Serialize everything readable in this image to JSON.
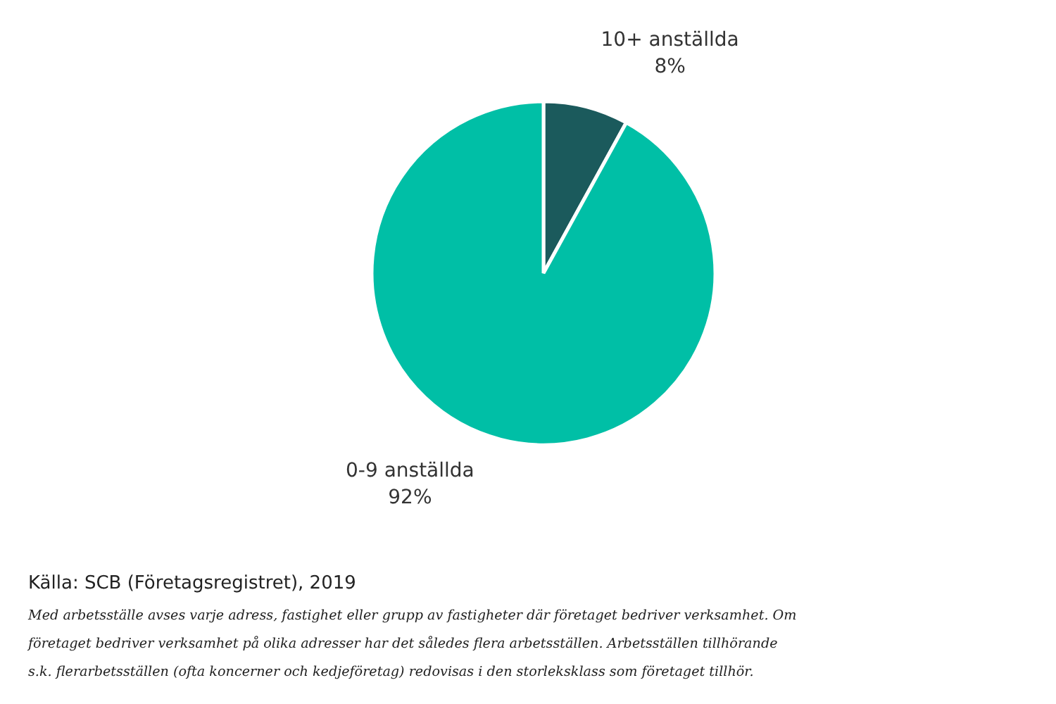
{
  "chart_data": {
    "type": "pie",
    "categories": [
      "10+ anställda",
      "0-9 anställda"
    ],
    "values": [
      8,
      92
    ],
    "colors": [
      "#1b5a5c",
      "#00bfa6"
    ],
    "value_labels": [
      "8%",
      "92%"
    ],
    "annotations": [
      "Källa: SCB (Företagsregistret), 2019",
      "Med arbetsställe avses varje adress, fastighet eller grupp av fastigheter där företaget bedriver verksamhet. Om",
      "företaget bedriver verksamhet på olika adresser har det således flera arbetsställen. Arbetsställen tillhörande",
      "s.k. flerarbetsställen (ofta koncerner och kedjeföretag) redovisas i den storleksklass som företaget tillhör."
    ]
  }
}
